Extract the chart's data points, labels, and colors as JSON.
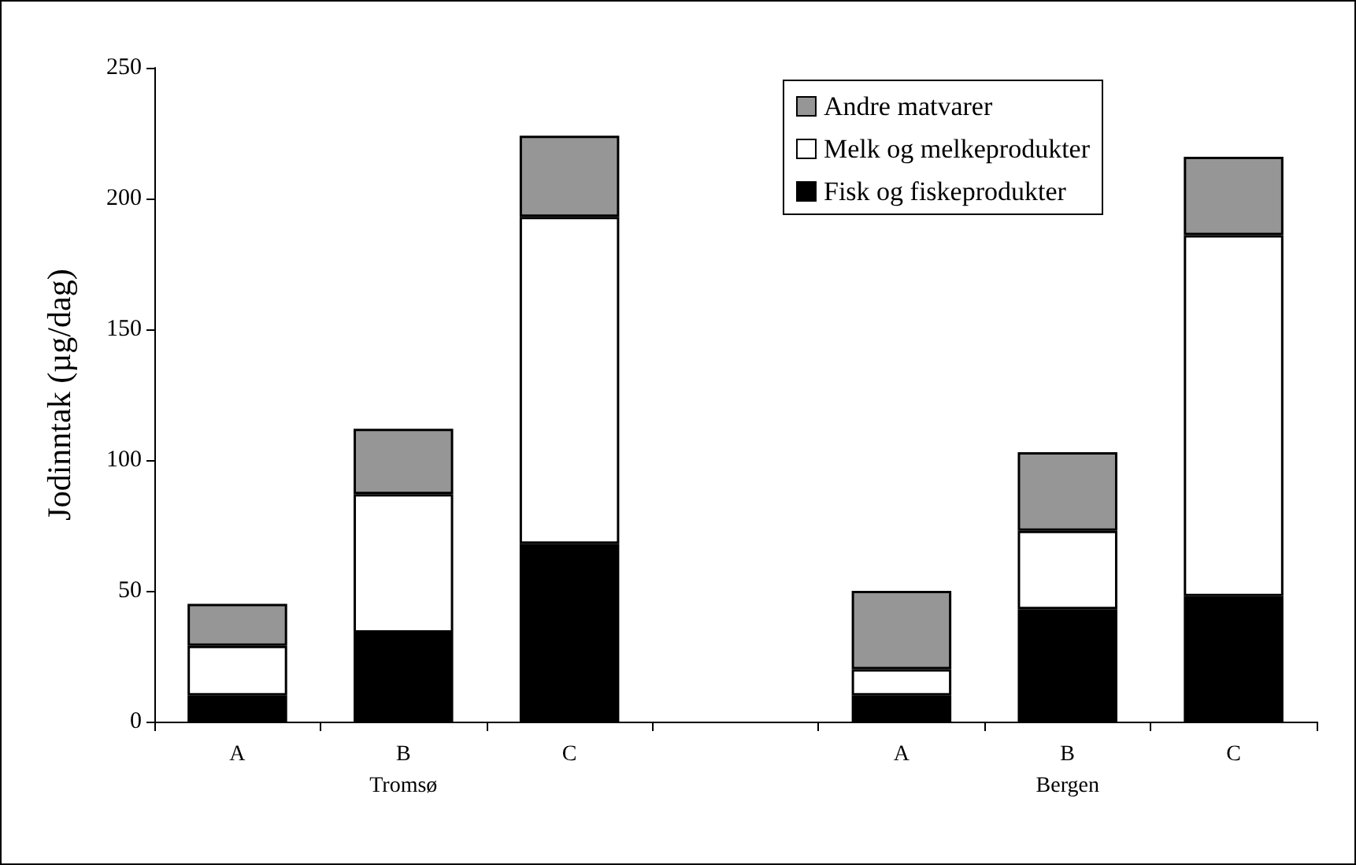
{
  "chart_data": {
    "type": "bar",
    "stacked": true,
    "ylabel": "Jodinntak (µg/dag)",
    "categories": [
      "A",
      "B",
      "C",
      null,
      "A",
      "B",
      "C"
    ],
    "annotations": [
      "Tromsø",
      "Bergen"
    ],
    "series": [
      {
        "name": "Fisk og fiskeprodukter",
        "color": "#000000",
        "values": [
          10,
          34,
          68,
          null,
          10,
          43,
          48
        ]
      },
      {
        "name": "Melk og melkeprodukter",
        "color": "#ffffff",
        "values": [
          19,
          53,
          125,
          null,
          10,
          30,
          138
        ]
      },
      {
        "name": "Andre matvarer",
        "color": "#969696",
        "values": [
          16,
          25,
          31,
          null,
          30,
          30,
          30
        ]
      }
    ],
    "ylim": [
      0,
      250
    ],
    "yticks": [
      0,
      50,
      100,
      150,
      200,
      250
    ],
    "grid": false,
    "legend": "top right"
  }
}
